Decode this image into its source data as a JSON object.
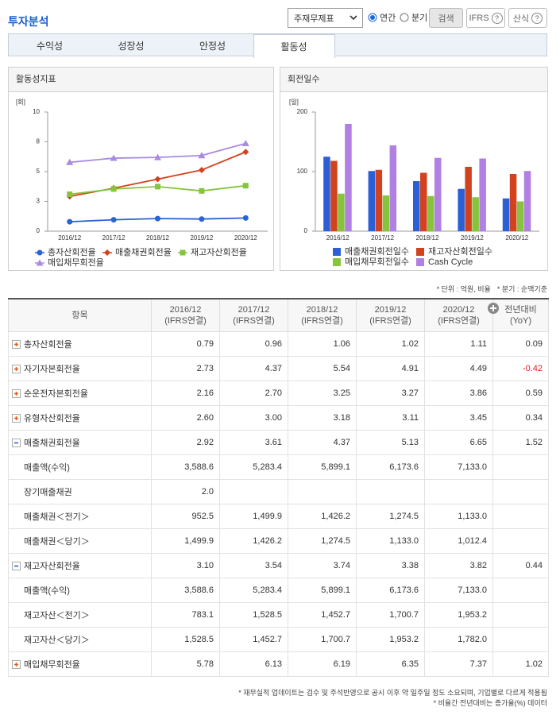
{
  "header": {
    "title": "투자분석",
    "select": "주재무제표",
    "radios": [
      {
        "label": "연간",
        "checked": true
      },
      {
        "label": "분기",
        "checked": false
      }
    ],
    "buttons": [
      {
        "label": "검색"
      },
      {
        "label": "IFRS",
        "help": "?"
      },
      {
        "label": "산식",
        "help": "?"
      }
    ]
  },
  "tabs": {
    "items": [
      "수익성",
      "성장성",
      "안정성",
      "활동성"
    ],
    "active": 3
  },
  "chart_data": [
    {
      "type": "line",
      "title": "활동성지표",
      "y_unit": "[회]",
      "categories": [
        "2016/12",
        "2017/12",
        "2018/12",
        "2019/12",
        "2020/12"
      ],
      "series": [
        {
          "name": "총자산회전율",
          "color": "#2a63d4",
          "marker": "circle",
          "values": [
            0.79,
            0.96,
            1.06,
            1.02,
            1.11
          ]
        },
        {
          "name": "매출채권회전율",
          "color": "#d2421e",
          "marker": "diamond",
          "values": [
            2.92,
            3.61,
            4.37,
            5.13,
            6.65
          ]
        },
        {
          "name": "재고자산회전율",
          "color": "#86c43e",
          "marker": "square",
          "values": [
            3.1,
            3.54,
            3.74,
            3.38,
            3.82
          ]
        },
        {
          "name": "매입채무회전율",
          "color": "#a98be0",
          "marker": "triangle",
          "values": [
            5.78,
            6.13,
            6.19,
            6.35,
            7.37
          ]
        }
      ],
      "ylim": [
        0,
        10
      ],
      "yticks": [
        0,
        {
          "value": 2.5,
          "label": "3"
        },
        5,
        {
          "value": 7.5,
          "label": "8"
        },
        10
      ]
    },
    {
      "type": "bar",
      "title": "회전일수",
      "y_unit": "[일]",
      "categories": [
        "2016/12",
        "2017/12",
        "2018/12",
        "2019/12",
        "2020/12"
      ],
      "series": [
        {
          "name": "매출채권회전일수",
          "color": "#2c5fd6",
          "values": [
            125,
            101,
            84,
            71,
            55
          ]
        },
        {
          "name": "재고자산회전일수",
          "color": "#d2421e",
          "values": [
            118,
            103,
            98,
            108,
            96
          ]
        },
        {
          "name": "매입채무회전일수",
          "color": "#86c43e",
          "values": [
            63,
            60,
            59,
            57,
            50
          ]
        },
        {
          "name": "Cash Cycle",
          "color": "#b27fe2",
          "values": [
            180,
            144,
            123,
            122,
            101
          ]
        }
      ],
      "ylim": [
        0,
        200
      ],
      "yticks": [
        0,
        100,
        200
      ]
    }
  ],
  "notes": [
    "* 단위 : 억원, 비율",
    "* 분기 : 순액기준"
  ],
  "table": {
    "columns": [
      [
        "항목"
      ],
      [
        "2016/12",
        "(IFRS연결)"
      ],
      [
        "2017/12",
        "(IFRS연결)"
      ],
      [
        "2018/12",
        "(IFRS연결)"
      ],
      [
        "2019/12",
        "(IFRS연결)"
      ],
      [
        "2020/12",
        "(IFRS연결)"
      ],
      [
        "전년대비",
        "(YoY)"
      ]
    ],
    "rows": [
      {
        "label": "총자산회전율",
        "expanded": false,
        "cells": [
          "0.79",
          "0.96",
          "1.06",
          "1.02",
          "1.11",
          "0.09"
        ]
      },
      {
        "label": "자기자본회전율",
        "expanded": false,
        "cells": [
          "2.73",
          "4.37",
          "5.54",
          "4.91",
          "4.49",
          "-0.42"
        ]
      },
      {
        "label": "순운전자본회전율",
        "expanded": false,
        "cells": [
          "2.16",
          "2.70",
          "3.25",
          "3.27",
          "3.86",
          "0.59"
        ]
      },
      {
        "label": "유형자산회전율",
        "expanded": false,
        "cells": [
          "2.60",
          "3.00",
          "3.18",
          "3.11",
          "3.45",
          "0.34"
        ]
      },
      {
        "label": "매출채권회전율",
        "expanded": true,
        "cells": [
          "2.92",
          "3.61",
          "4.37",
          "5.13",
          "6.65",
          "1.52"
        ]
      },
      {
        "label": "매출액(수익)",
        "cells": [
          "3,588.6",
          "5,283.4",
          "5,899.1",
          "6,173.6",
          "7,133.0",
          null
        ]
      },
      {
        "label": "장기매출채권",
        "cells": [
          "2.0",
          null,
          null,
          null,
          null,
          null
        ]
      },
      {
        "label": "매출채권＜전기＞",
        "cells": [
          "952.5",
          "1,499.9",
          "1,426.2",
          "1,274.5",
          "1,133.0",
          null
        ]
      },
      {
        "label": "매출채권＜당기＞",
        "cells": [
          "1,499.9",
          "1,426.2",
          "1,274.5",
          "1,133.0",
          "1,012.4",
          null
        ]
      },
      {
        "label": "재고자산회전율",
        "expanded": true,
        "cells": [
          "3.10",
          "3.54",
          "3.74",
          "3.38",
          "3.82",
          "0.44"
        ]
      },
      {
        "label": "매출액(수익)",
        "cells": [
          "3,588.6",
          "5,283.4",
          "5,899.1",
          "6,173.6",
          "7,133.0",
          null
        ]
      },
      {
        "label": "재고자산＜전기＞",
        "cells": [
          "783.1",
          "1,528.5",
          "1,452.7",
          "1,700.7",
          "1,953.2",
          null
        ]
      },
      {
        "label": "재고자산＜당기＞",
        "cells": [
          "1,528.5",
          "1,452.7",
          "1,700.7",
          "1,953.2",
          "1,782.0",
          null
        ]
      },
      {
        "label": "매입채무회전율",
        "expanded": false,
        "cells": [
          "5.78",
          "6.13",
          "6.19",
          "6.35",
          "7.37",
          "1.02"
        ]
      }
    ]
  },
  "footnotes": [
    "* 재무실적 업데이트는 검수 및 주석반영으로 공시 이후 약 일주일 정도 소요되며, 기업별로 다르게 적용됨",
    "* 비율간 전년대비는 증가율(%) 데이터"
  ]
}
